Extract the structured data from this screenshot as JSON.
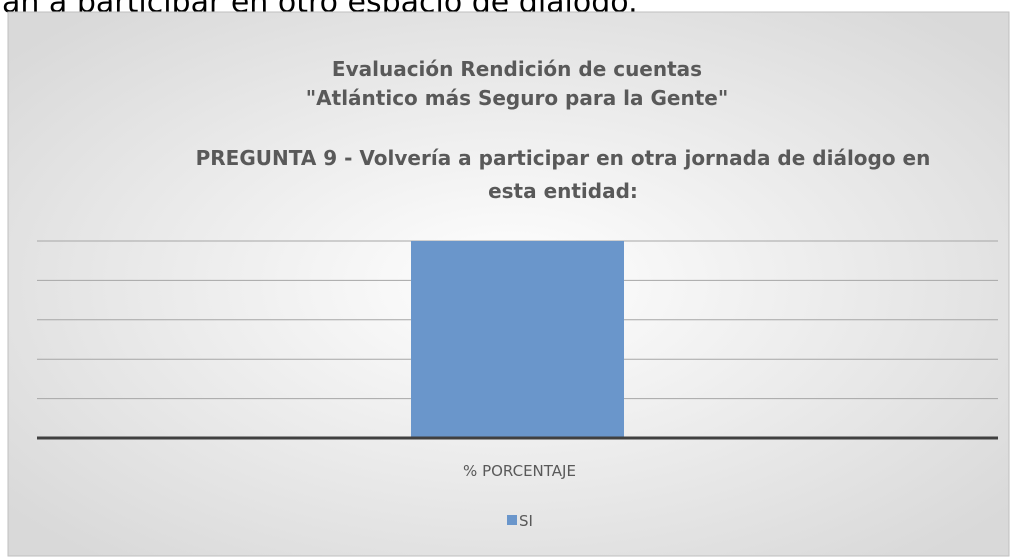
{
  "header_text": "an a participar en otro espacio de diálogo.",
  "chart_data": {
    "type": "bar",
    "title": [
      "Evaluación Rendición de cuentas",
      "\"Atlántico más Seguro para la Gente\""
    ],
    "subtitle": [
      "PREGUNTA 9 - Volvería a participar en otra jornada de diálogo en",
      "esta entidad:"
    ],
    "categories": [
      "% PORCENTAJE"
    ],
    "series": [
      {
        "name": "SI",
        "color": "#6a96cb",
        "values": [
          100
        ]
      }
    ],
    "ylim": [
      0,
      100
    ],
    "yticks": [
      0,
      20,
      40,
      60,
      80,
      100
    ],
    "grid": true,
    "legend": "bottom"
  }
}
